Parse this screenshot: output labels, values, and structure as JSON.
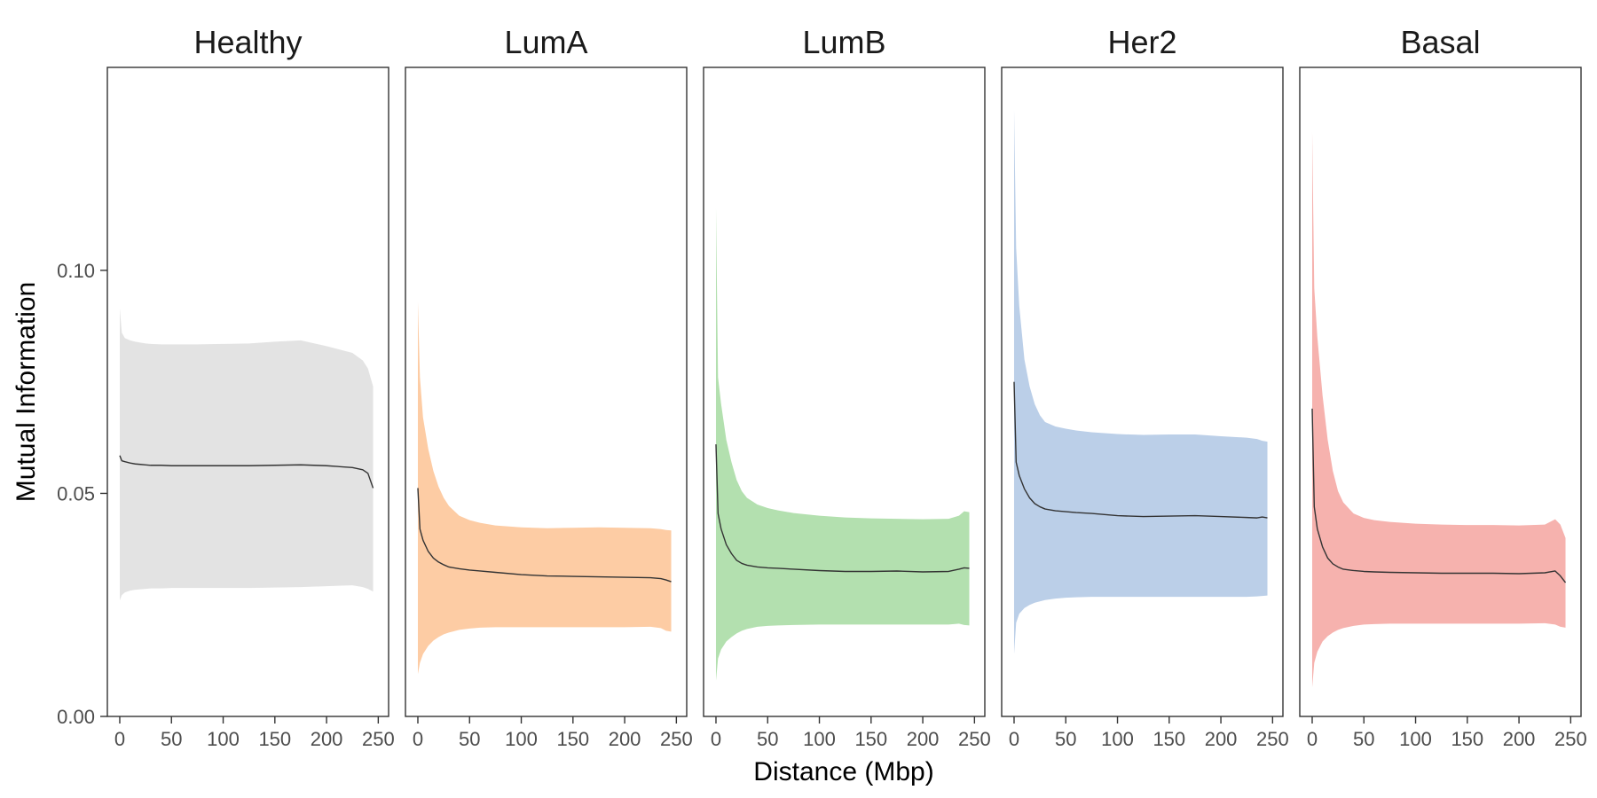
{
  "chart_data": {
    "type": "area",
    "xlabel": "Distance (Mbp)",
    "ylabel": "Mutual Information",
    "xlim": [
      -12,
      260
    ],
    "ylim": [
      0,
      0.1455
    ],
    "x_ticks": [
      0,
      50,
      100,
      150,
      200,
      250
    ],
    "x_tick_labels": [
      "0",
      "50",
      "100",
      "150",
      "200",
      "250"
    ],
    "y_ticks": [
      0.0,
      0.05,
      0.1
    ],
    "y_tick_labels": [
      "0.00",
      "0.05",
      "0.10"
    ],
    "grid": false,
    "legend": "none",
    "x": [
      0,
      2,
      5,
      10,
      15,
      20,
      25,
      30,
      40,
      50,
      60,
      75,
      100,
      125,
      150,
      175,
      200,
      225,
      235,
      240,
      245
    ],
    "panels": [
      {
        "title": "Healthy",
        "color": "#e3e3e3",
        "mean": [
          0.0585,
          0.0573,
          0.0571,
          0.0568,
          0.0566,
          0.0565,
          0.0564,
          0.0563,
          0.0563,
          0.0562,
          0.0562,
          0.0562,
          0.0562,
          0.0562,
          0.0563,
          0.0564,
          0.0562,
          0.0558,
          0.0553,
          0.0545,
          0.0512
        ],
        "upper": [
          0.0915,
          0.086,
          0.0848,
          0.0843,
          0.084,
          0.0838,
          0.0836,
          0.0835,
          0.0834,
          0.0834,
          0.0834,
          0.0834,
          0.0835,
          0.0836,
          0.084,
          0.0843,
          0.083,
          0.0815,
          0.0798,
          0.078,
          0.074
        ],
        "lower": [
          0.026,
          0.0272,
          0.0278,
          0.0282,
          0.0284,
          0.0285,
          0.0286,
          0.0287,
          0.0287,
          0.0288,
          0.0288,
          0.0288,
          0.0288,
          0.0288,
          0.0289,
          0.029,
          0.0292,
          0.0294,
          0.029,
          0.0286,
          0.028
        ]
      },
      {
        "title": "LumA",
        "color": "#fdcca4",
        "mean": [
          0.0512,
          0.042,
          0.0395,
          0.037,
          0.0355,
          0.0346,
          0.034,
          0.0335,
          0.0331,
          0.0328,
          0.0326,
          0.0323,
          0.0318,
          0.0315,
          0.0314,
          0.0313,
          0.0312,
          0.0311,
          0.0309,
          0.0306,
          0.0302
        ],
        "upper": [
          0.093,
          0.076,
          0.067,
          0.06,
          0.055,
          0.0515,
          0.049,
          0.0472,
          0.045,
          0.044,
          0.0434,
          0.0428,
          0.0424,
          0.0422,
          0.0423,
          0.0424,
          0.0423,
          0.0422,
          0.042,
          0.0418,
          0.0417
        ],
        "lower": [
          0.0095,
          0.012,
          0.014,
          0.0158,
          0.017,
          0.0178,
          0.0184,
          0.0188,
          0.0194,
          0.0197,
          0.0199,
          0.02,
          0.02,
          0.02,
          0.02,
          0.02,
          0.02,
          0.0201,
          0.0198,
          0.0192,
          0.019
        ]
      },
      {
        "title": "LumB",
        "color": "#b3e0af",
        "mean": [
          0.061,
          0.0455,
          0.042,
          0.0385,
          0.0365,
          0.035,
          0.0343,
          0.0339,
          0.0335,
          0.0333,
          0.0332,
          0.033,
          0.0327,
          0.0325,
          0.0325,
          0.0326,
          0.0324,
          0.0325,
          0.033,
          0.0333,
          0.0332
        ],
        "upper": [
          0.114,
          0.076,
          0.07,
          0.062,
          0.057,
          0.053,
          0.0505,
          0.049,
          0.0475,
          0.0467,
          0.0462,
          0.0456,
          0.045,
          0.0446,
          0.0444,
          0.0443,
          0.0442,
          0.0443,
          0.045,
          0.046,
          0.0458
        ],
        "lower": [
          0.008,
          0.013,
          0.015,
          0.0168,
          0.0178,
          0.0186,
          0.0192,
          0.0196,
          0.0201,
          0.0203,
          0.0204,
          0.0205,
          0.0206,
          0.0206,
          0.0206,
          0.0206,
          0.0206,
          0.0206,
          0.0208,
          0.0205,
          0.0204
        ]
      },
      {
        "title": "Her2",
        "color": "#bbcfe8",
        "mean": [
          0.075,
          0.057,
          0.054,
          0.051,
          0.049,
          0.0477,
          0.047,
          0.0465,
          0.0461,
          0.0459,
          0.0457,
          0.0455,
          0.045,
          0.0448,
          0.0449,
          0.045,
          0.0448,
          0.0446,
          0.0445,
          0.0447,
          0.0445
        ],
        "upper": [
          0.136,
          0.105,
          0.092,
          0.08,
          0.074,
          0.07,
          0.0675,
          0.066,
          0.065,
          0.0645,
          0.0641,
          0.0637,
          0.0633,
          0.0631,
          0.0632,
          0.0632,
          0.0628,
          0.0625,
          0.0622,
          0.0618,
          0.0616
        ],
        "lower": [
          0.014,
          0.021,
          0.023,
          0.0243,
          0.025,
          0.0255,
          0.0258,
          0.0261,
          0.0264,
          0.0266,
          0.0267,
          0.0268,
          0.0268,
          0.0268,
          0.0268,
          0.0268,
          0.0268,
          0.0268,
          0.0269,
          0.027,
          0.0271
        ]
      },
      {
        "title": "Basal",
        "color": "#f6b2ae",
        "mean": [
          0.069,
          0.047,
          0.042,
          0.038,
          0.0355,
          0.0342,
          0.0335,
          0.033,
          0.0327,
          0.0325,
          0.0324,
          0.0323,
          0.0322,
          0.0321,
          0.0321,
          0.0321,
          0.032,
          0.0322,
          0.0326,
          0.0315,
          0.03
        ],
        "upper": [
          0.131,
          0.096,
          0.085,
          0.072,
          0.062,
          0.055,
          0.0505,
          0.048,
          0.0455,
          0.0445,
          0.044,
          0.0436,
          0.0432,
          0.043,
          0.0429,
          0.0429,
          0.0428,
          0.043,
          0.0442,
          0.043,
          0.04
        ],
        "lower": [
          0.0065,
          0.012,
          0.0145,
          0.0168,
          0.018,
          0.0188,
          0.0194,
          0.0198,
          0.0203,
          0.0206,
          0.0207,
          0.0208,
          0.0208,
          0.0208,
          0.0208,
          0.0208,
          0.0208,
          0.0209,
          0.0206,
          0.0201,
          0.0199
        ]
      }
    ]
  }
}
